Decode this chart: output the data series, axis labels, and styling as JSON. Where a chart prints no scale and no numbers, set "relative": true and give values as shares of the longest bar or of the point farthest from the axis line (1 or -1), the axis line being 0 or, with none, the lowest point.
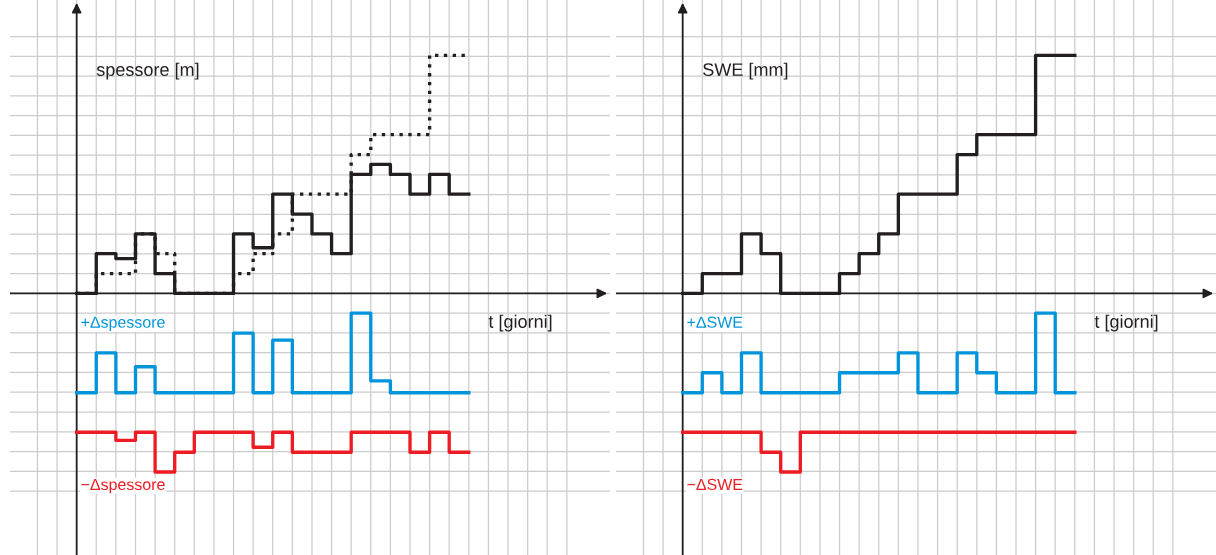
{
  "chart_data": [
    {
      "type": "step",
      "relative": true,
      "ylabel": "spessore [m]",
      "xlabel": "t [giorni]",
      "grid": true,
      "legend": false,
      "tick_labels": false,
      "categories": [
        null,
        null,
        null,
        null,
        null,
        null,
        null,
        null,
        null,
        null,
        null,
        null,
        null,
        null,
        null,
        null,
        null,
        null,
        null,
        null,
        null
      ],
      "series": [
        {
          "color": "#231f20",
          "line_style": "solid",
          "values": [
            0,
            0.167,
            0.146,
            0.25,
            0.083,
            0,
            0,
            0,
            0.25,
            0.192,
            0.417,
            0.333,
            0.25,
            0.167,
            0.5,
            0.542,
            0.5,
            0.417,
            0.5,
            0.417,
            0.417
          ]
        },
        {
          "color": "#231f20",
          "line_style": "dotted",
          "values": [
            0,
            0.083,
            0.083,
            0.25,
            0.167,
            0,
            0,
            0,
            0.083,
            0.167,
            0.25,
            0.417,
            0.417,
            0.417,
            0.583,
            0.667,
            0.667,
            0.667,
            1,
            1,
            1
          ]
        },
        {
          "name": "+Δspessore",
          "color": "#0095da",
          "line_style": "solid",
          "values": [
            -0.417,
            -0.25,
            -0.417,
            -0.308,
            -0.417,
            -0.417,
            -0.417,
            -0.417,
            -0.167,
            -0.417,
            -0.196,
            -0.417,
            -0.417,
            -0.417,
            -0.083,
            -0.367,
            -0.417,
            -0.417,
            -0.417,
            -0.417,
            -0.417
          ]
        },
        {
          "name": "−Δspessore",
          "color": "#ed1c24",
          "line_style": "solid",
          "values": [
            -0.583,
            -0.583,
            -0.617,
            -0.583,
            -0.75,
            -0.667,
            -0.583,
            -0.583,
            -0.583,
            -0.646,
            -0.583,
            -0.667,
            -0.667,
            -0.667,
            -0.583,
            -0.583,
            -0.583,
            -0.667,
            -0.583,
            -0.667,
            -0.667
          ]
        }
      ]
    },
    {
      "type": "step",
      "relative": true,
      "ylabel": "SWE [mm]",
      "xlabel": "t [giorni]",
      "grid": true,
      "legend": false,
      "tick_labels": false,
      "categories": [
        null,
        null,
        null,
        null,
        null,
        null,
        null,
        null,
        null,
        null,
        null,
        null,
        null,
        null,
        null,
        null,
        null,
        null,
        null,
        null,
        null
      ],
      "series": [
        {
          "color": "#231f20",
          "line_style": "solid",
          "values": [
            0,
            0.083,
            0.083,
            0.25,
            0.167,
            0,
            0,
            0,
            0.083,
            0.167,
            0.25,
            0.417,
            0.417,
            0.417,
            0.583,
            0.667,
            0.667,
            0.667,
            1,
            1,
            1
          ]
        },
        {
          "name": "+ΔSWE",
          "color": "#0095da",
          "line_style": "solid",
          "values": [
            -0.417,
            -0.333,
            -0.417,
            -0.25,
            -0.417,
            -0.417,
            -0.417,
            -0.417,
            -0.333,
            -0.333,
            -0.333,
            -0.25,
            -0.417,
            -0.417,
            -0.25,
            -0.333,
            -0.417,
            -0.417,
            -0.083,
            -0.417,
            -0.417
          ]
        },
        {
          "name": "−ΔSWE",
          "color": "#ed1c24",
          "line_style": "solid",
          "values": [
            -0.583,
            -0.583,
            -0.583,
            -0.583,
            -0.667,
            -0.75,
            -0.583,
            -0.583,
            -0.583,
            -0.583,
            -0.583,
            -0.583,
            -0.583,
            -0.583,
            -0.583,
            -0.583,
            -0.583,
            -0.583,
            -0.583,
            -0.583,
            -0.583
          ]
        }
      ]
    }
  ]
}
